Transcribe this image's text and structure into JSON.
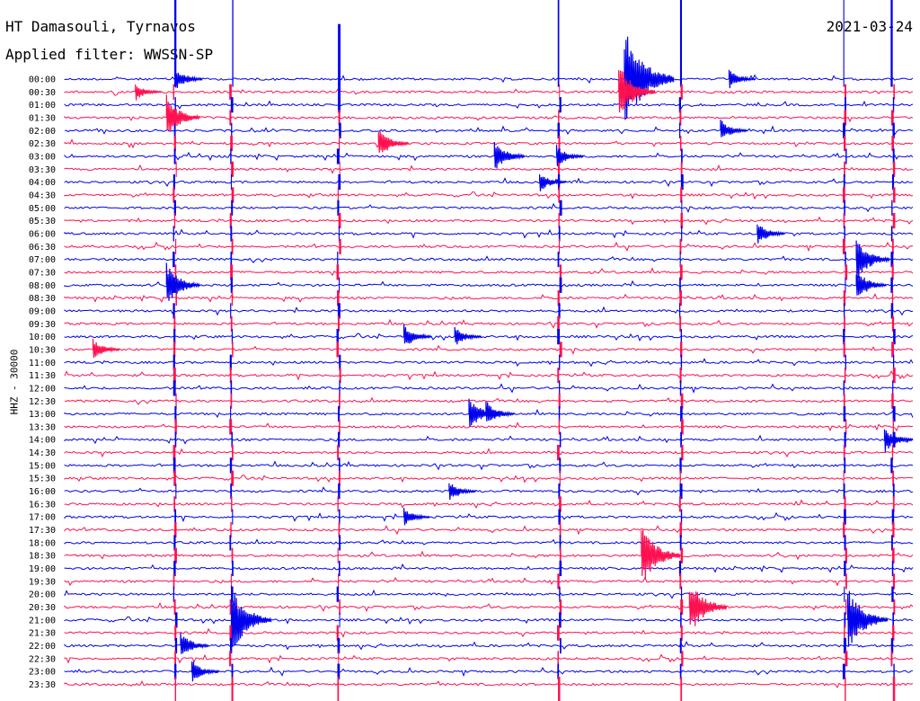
{
  "header": {
    "station": "HT Damasouli, Tyrnavos",
    "filter": "Applied filter: WWSSN-SP",
    "date": "2021-03-24"
  },
  "chart_data": {
    "type": "line",
    "title": "HT Damasouli, Tyrnavos",
    "subtitle": "Applied filter: WWSSN-SP",
    "date": "2021-03-24",
    "ylabel": "HHZ - 30000",
    "trace_times": [
      "00:00",
      "00:30",
      "01:00",
      "01:30",
      "02:00",
      "02:30",
      "03:00",
      "03:30",
      "04:00",
      "04:30",
      "05:00",
      "05:30",
      "06:00",
      "06:30",
      "07:00",
      "07:30",
      "08:00",
      "08:30",
      "09:00",
      "09:30",
      "10:00",
      "10:30",
      "11:00",
      "11:30",
      "12:00",
      "12:30",
      "13:00",
      "13:30",
      "14:00",
      "14:30",
      "15:00",
      "15:30",
      "16:00",
      "16:30",
      "17:00",
      "17:30",
      "18:00",
      "18:30",
      "19:00",
      "19:30",
      "20:00",
      "20:30",
      "21:00",
      "21:30",
      "22:00",
      "22:30",
      "23:00",
      "23:30"
    ],
    "trace_colors": [
      "#0000ee",
      "#ff1050"
    ],
    "minutes_per_trace": 30,
    "events": [
      {
        "trace": 0,
        "minute": 3.9,
        "amp": 1.1
      },
      {
        "trace": 0,
        "minute": 19.8,
        "amp": 4.5
      },
      {
        "trace": 0,
        "minute": 23.5,
        "amp": 0.9
      },
      {
        "trace": 1,
        "minute": 2.5,
        "amp": 0.8
      },
      {
        "trace": 1,
        "minute": 19.6,
        "amp": 2.5
      },
      {
        "trace": 3,
        "minute": 3.6,
        "amp": 2.0
      },
      {
        "trace": 4,
        "minute": 23.2,
        "amp": 1.0
      },
      {
        "trace": 5,
        "minute": 11.1,
        "amp": 1.4
      },
      {
        "trace": 6,
        "minute": 15.2,
        "amp": 1.5
      },
      {
        "trace": 6,
        "minute": 17.4,
        "amp": 1.0
      },
      {
        "trace": 8,
        "minute": 16.8,
        "amp": 0.9
      },
      {
        "trace": 12,
        "minute": 24.5,
        "amp": 1.1
      },
      {
        "trace": 14,
        "minute": 28.0,
        "amp": 2.0
      },
      {
        "trace": 16,
        "minute": 3.6,
        "amp": 2.0
      },
      {
        "trace": 16,
        "minute": 28.0,
        "amp": 1.5
      },
      {
        "trace": 20,
        "minute": 12.0,
        "amp": 1.1
      },
      {
        "trace": 20,
        "minute": 13.8,
        "amp": 0.9
      },
      {
        "trace": 21,
        "minute": 1.0,
        "amp": 1.0
      },
      {
        "trace": 26,
        "minute": 14.3,
        "amp": 1.5
      },
      {
        "trace": 26,
        "minute": 14.9,
        "amp": 1.2
      },
      {
        "trace": 28,
        "minute": 29.0,
        "amp": 1.2
      },
      {
        "trace": 32,
        "minute": 13.6,
        "amp": 0.9
      },
      {
        "trace": 34,
        "minute": 12.0,
        "amp": 0.8
      },
      {
        "trace": 37,
        "minute": 20.4,
        "amp": 2.8
      },
      {
        "trace": 41,
        "minute": 22.1,
        "amp": 2.6
      },
      {
        "trace": 42,
        "minute": 5.9,
        "amp": 3.0
      },
      {
        "trace": 42,
        "minute": 27.7,
        "amp": 3.0
      },
      {
        "trace": 44,
        "minute": 4.1,
        "amp": 1.2
      },
      {
        "trace": 46,
        "minute": 4.5,
        "amp": 1.0
      }
    ],
    "spikes": [
      {
        "minute": 3.9,
        "from": 0,
        "to": 47
      },
      {
        "minute": 5.9,
        "from": 0,
        "to": 47
      },
      {
        "minute": 9.7,
        "from": 2,
        "to": 47
      },
      {
        "minute": 17.5,
        "from": 0,
        "to": 47
      },
      {
        "minute": 21.8,
        "from": 0,
        "to": 47
      },
      {
        "minute": 27.6,
        "from": 0,
        "to": 47
      },
      {
        "minute": 29.3,
        "from": 0,
        "to": 47
      }
    ]
  }
}
